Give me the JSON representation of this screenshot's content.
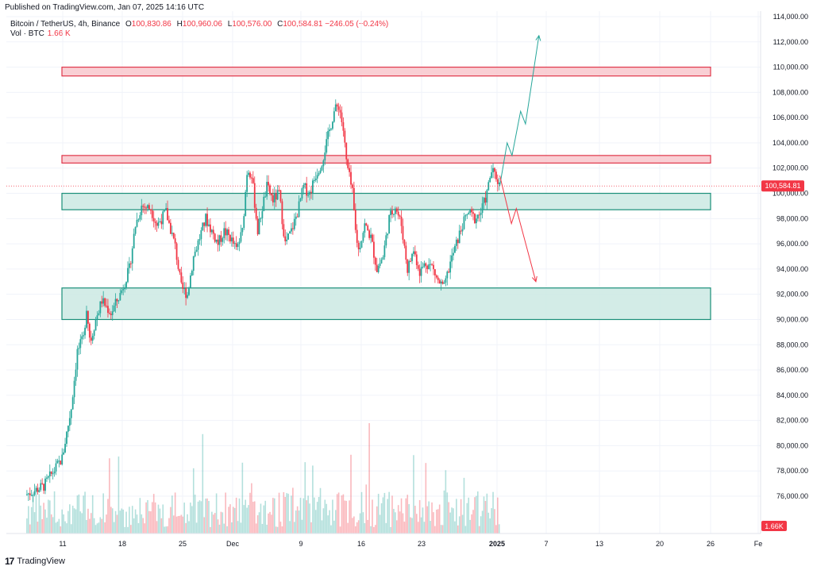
{
  "header": {
    "published": "Published on TradingView.com, Jan 07, 2025 14:16 UTC",
    "symbol": "Bitcoin / TetherUS, 4h, Binance",
    "open_label": "O",
    "open": "100,830.86",
    "high_label": "H",
    "high": "100,960.06",
    "low_label": "L",
    "low": "100,576.00",
    "close_label": "C",
    "close": "100,584.81",
    "change": "−246.05 (−0.24%)",
    "vol_label": "Vol · BTC",
    "vol_value": "1.66 K"
  },
  "footer": {
    "logo": "17",
    "brand": "TradingView"
  },
  "colors": {
    "up": "#26a69a",
    "down": "#f23645",
    "zone_red_fill": "#f8c7cc",
    "zone_red_stroke": "#e0374a",
    "zone_green_fill": "#cbe9e3",
    "zone_green_stroke": "#1a8f79",
    "grid": "#f0f3fa",
    "axis_text": "#131722"
  },
  "chart_data": {
    "type": "candlestick",
    "ylim": [
      75000,
      114000
    ],
    "y_ticks": [
      "114,000.00",
      "112,000.00",
      "110,000.00",
      "108,000.00",
      "106,000.00",
      "104,000.00",
      "102,000.00",
      "100,000.00",
      "98,000.00",
      "96,000.00",
      "94,000.00",
      "92,000.00",
      "90,000.00",
      "88,000.00",
      "86,000.00",
      "84,000.00",
      "82,000.00",
      "80,000.00",
      "78,000.00",
      "76,000.00"
    ],
    "x_ticks": [
      "11",
      "18",
      "25",
      "Dec",
      "9",
      "16",
      "23",
      "2025",
      "7",
      "13",
      "20",
      "26",
      "Fe"
    ],
    "last_price_label": "100,584.81",
    "last_price": 100584.81,
    "volume_label": "1.66K",
    "grid": true,
    "zones": [
      {
        "kind": "resistance",
        "low": 109300,
        "high": 110000
      },
      {
        "kind": "resistance",
        "low": 102400,
        "high": 103000
      },
      {
        "kind": "support",
        "low": 98700,
        "high": 100000
      },
      {
        "kind": "support",
        "low": 90000,
        "high": 92500
      }
    ],
    "keypoints": [
      {
        "t": 0,
        "p": 76100
      },
      {
        "t": 3,
        "p": 76800
      },
      {
        "t": 6,
        "p": 79000
      },
      {
        "t": 7.5,
        "p": 83000
      },
      {
        "t": 8.5,
        "p": 87500
      },
      {
        "t": 9.5,
        "p": 88500
      },
      {
        "t": 10,
        "p": 91000
      },
      {
        "t": 10.6,
        "p": 88200
      },
      {
        "t": 11.5,
        "p": 90000
      },
      {
        "t": 12.5,
        "p": 91500
      },
      {
        "t": 14,
        "p": 90500
      },
      {
        "t": 15.5,
        "p": 92000
      },
      {
        "t": 17,
        "p": 94000
      },
      {
        "t": 18,
        "p": 97500
      },
      {
        "t": 19,
        "p": 99000
      },
      {
        "t": 20.5,
        "p": 98800
      },
      {
        "t": 21.5,
        "p": 97500
      },
      {
        "t": 23,
        "p": 98500
      },
      {
        "t": 24.5,
        "p": 95800
      },
      {
        "t": 25.5,
        "p": 92500
      },
      {
        "t": 26.5,
        "p": 92000
      },
      {
        "t": 27.5,
        "p": 95000
      },
      {
        "t": 28.5,
        "p": 96500
      },
      {
        "t": 29.5,
        "p": 98000
      },
      {
        "t": 30.5,
        "p": 97000
      },
      {
        "t": 31.5,
        "p": 96000
      },
      {
        "t": 32.5,
        "p": 97000
      },
      {
        "t": 33.5,
        "p": 96500
      },
      {
        "t": 34.5,
        "p": 95500
      },
      {
        "t": 35.5,
        "p": 97000
      },
      {
        "t": 36.3,
        "p": 102000
      },
      {
        "t": 37,
        "p": 101500
      },
      {
        "t": 38,
        "p": 97000
      },
      {
        "t": 38.8,
        "p": 99000
      },
      {
        "t": 39.5,
        "p": 100500
      },
      {
        "t": 40.5,
        "p": 99500
      },
      {
        "t": 41.5,
        "p": 100000
      },
      {
        "t": 42.5,
        "p": 96000
      },
      {
        "t": 43.5,
        "p": 97000
      },
      {
        "t": 44.5,
        "p": 98500
      },
      {
        "t": 45.5,
        "p": 100500
      },
      {
        "t": 46.5,
        "p": 100000
      },
      {
        "t": 47.5,
        "p": 101500
      },
      {
        "t": 48.5,
        "p": 102500
      },
      {
        "t": 49.5,
        "p": 104500
      },
      {
        "t": 50.5,
        "p": 106500
      },
      {
        "t": 51.3,
        "p": 107000
      },
      {
        "t": 52,
        "p": 105000
      },
      {
        "t": 52.5,
        "p": 102500
      },
      {
        "t": 53.5,
        "p": 100000
      },
      {
        "t": 54,
        "p": 97000
      },
      {
        "t": 54.5,
        "p": 95500
      },
      {
        "t": 55.5,
        "p": 97500
      },
      {
        "t": 56.5,
        "p": 96500
      },
      {
        "t": 57.5,
        "p": 94000
      },
      {
        "t": 58.5,
        "p": 95000
      },
      {
        "t": 59.5,
        "p": 98000
      },
      {
        "t": 60.5,
        "p": 99000
      },
      {
        "t": 61.5,
        "p": 97500
      },
      {
        "t": 62.5,
        "p": 94000
      },
      {
        "t": 63.5,
        "p": 95500
      },
      {
        "t": 64.5,
        "p": 93800
      },
      {
        "t": 65.5,
        "p": 94500
      },
      {
        "t": 66.5,
        "p": 94200
      },
      {
        "t": 67.5,
        "p": 93000
      },
      {
        "t": 68.5,
        "p": 92500
      },
      {
        "t": 69.5,
        "p": 94500
      },
      {
        "t": 70.5,
        "p": 96000
      },
      {
        "t": 71.5,
        "p": 97500
      },
      {
        "t": 72.5,
        "p": 98500
      },
      {
        "t": 73.5,
        "p": 98000
      },
      {
        "t": 74.5,
        "p": 98500
      },
      {
        "t": 75.5,
        "p": 100000
      },
      {
        "t": 76.2,
        "p": 101800
      },
      {
        "t": 77,
        "p": 101300
      },
      {
        "t": 77.6,
        "p": 100600
      }
    ],
    "projection_up": [
      {
        "t": 77.6,
        "p": 100600
      },
      {
        "t": 78.8,
        "p": 104000
      },
      {
        "t": 79.6,
        "p": 103000
      },
      {
        "t": 81,
        "p": 106500
      },
      {
        "t": 81.8,
        "p": 105500
      },
      {
        "t": 84,
        "p": 112500
      }
    ],
    "projection_down": [
      {
        "t": 77.6,
        "p": 101400
      },
      {
        "t": 79.5,
        "p": 97600
      },
      {
        "t": 80.3,
        "p": 98800
      },
      {
        "t": 83.5,
        "p": 93000
      }
    ]
  }
}
